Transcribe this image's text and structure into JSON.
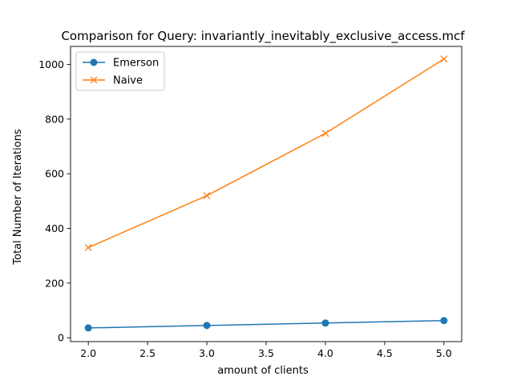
{
  "chart_data": {
    "type": "line",
    "title": "Comparison for Query: invariantly_inevitably_exclusive_access.mcf",
    "xlabel": "amount of clients",
    "ylabel": "Total Number of Iterations",
    "xlim": [
      1.85,
      5.15
    ],
    "ylim": [
      -14,
      1066
    ],
    "xticks": [
      2.0,
      2.5,
      3.0,
      3.5,
      4.0,
      4.5,
      5.0
    ],
    "xtick_labels": [
      "2.0",
      "2.5",
      "3.0",
      "3.5",
      "4.0",
      "4.5",
      "5.0"
    ],
    "yticks": [
      0,
      200,
      400,
      600,
      800,
      1000
    ],
    "ytick_labels": [
      "0",
      "200",
      "400",
      "600",
      "800",
      "1000"
    ],
    "grid": false,
    "legend_position": "upper-left",
    "series": [
      {
        "name": "Emerson",
        "marker": "circle",
        "color": "#1f77b4",
        "x": [
          2,
          3,
          4,
          5
        ],
        "y": [
          36,
          45,
          54,
          63
        ]
      },
      {
        "name": "Naive",
        "marker": "x",
        "color": "#ff7f0e",
        "x": [
          2,
          3,
          4,
          5
        ],
        "y": [
          330,
          520,
          748,
          1020
        ]
      }
    ]
  }
}
